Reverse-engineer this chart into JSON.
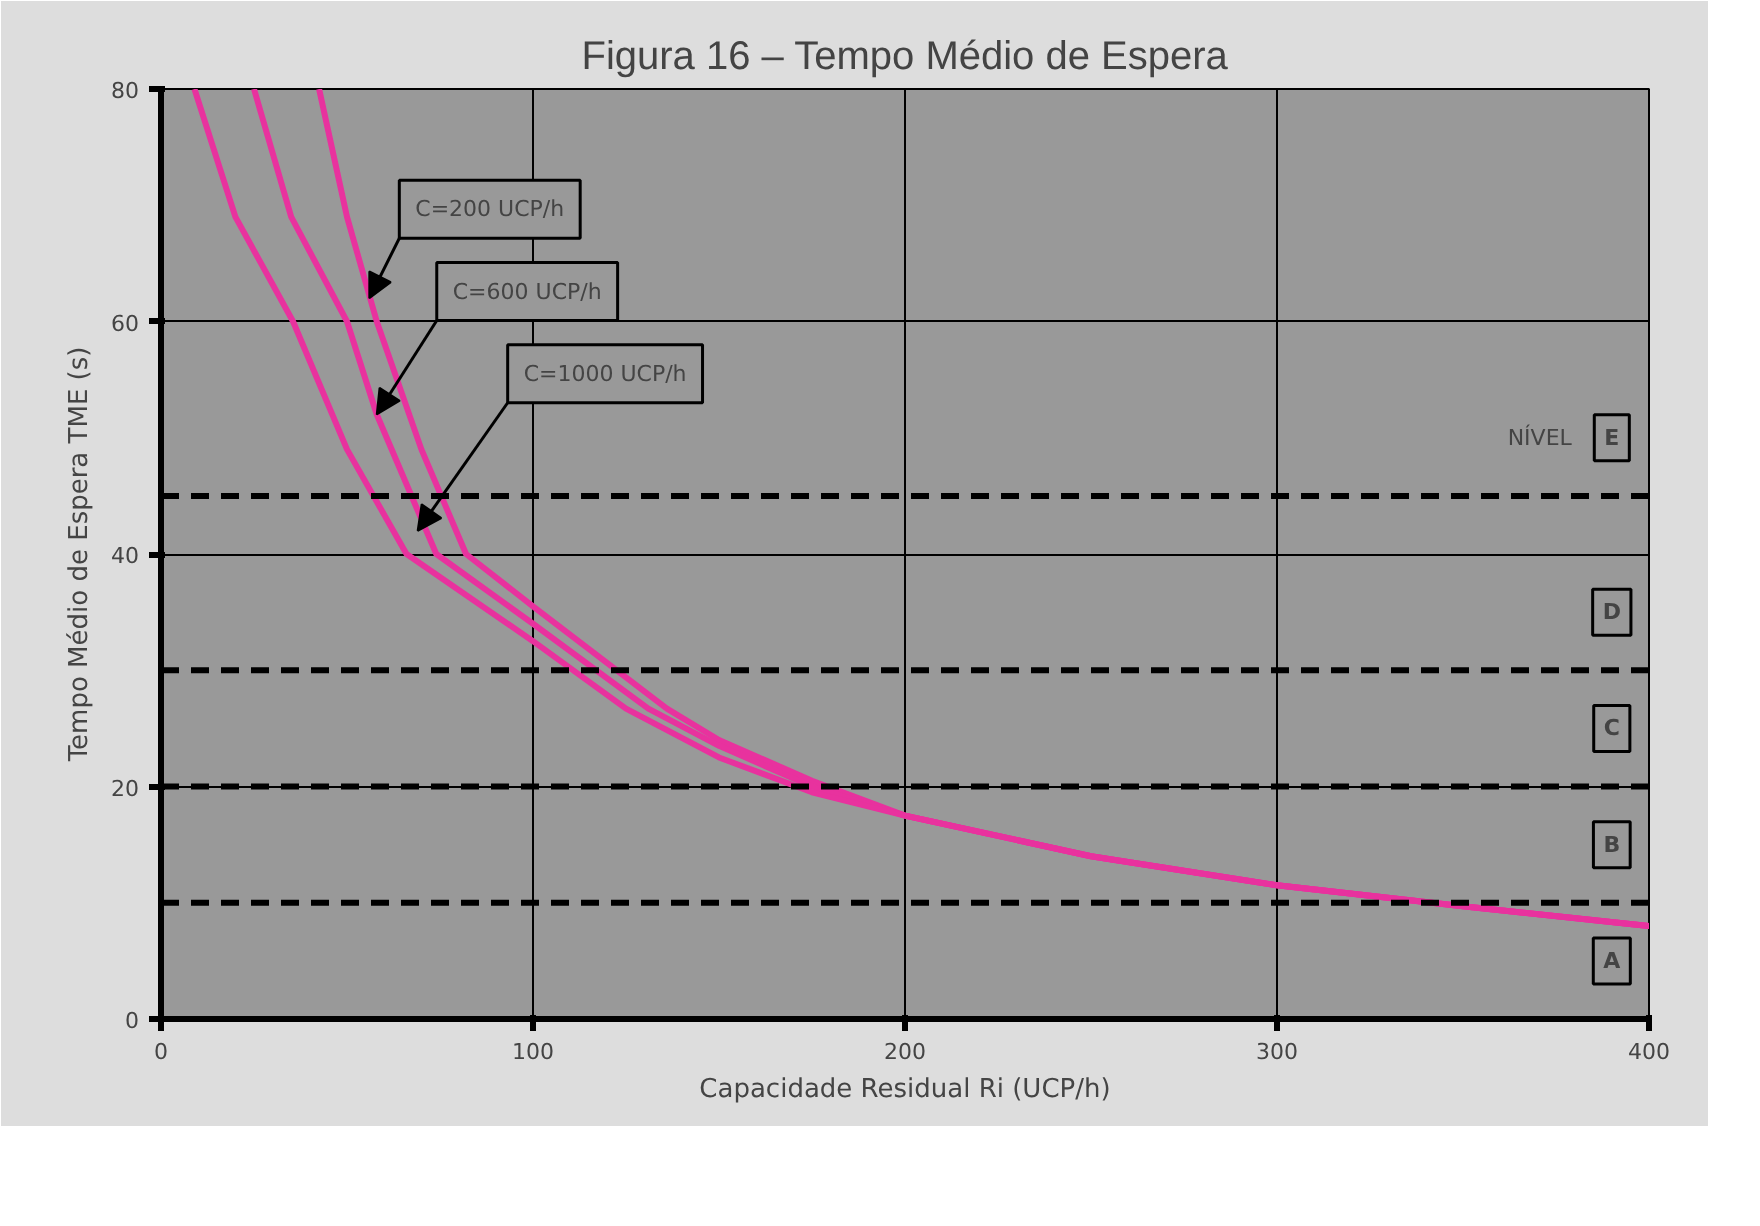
{
  "chart_data": {
    "type": "line",
    "title": "Figura 16 – Tempo Médio de Espera",
    "xlabel": "Capacidade Residual Ri (UCP/h)",
    "ylabel": "Tempo Médio de Espera TME (s)",
    "xlim": [
      0,
      400
    ],
    "ylim": [
      0,
      80
    ],
    "xticks": [
      0,
      100,
      200,
      300,
      400
    ],
    "yticks": [
      0,
      20,
      40,
      60,
      80
    ],
    "grid": true,
    "marker": "none",
    "line_style": "solid",
    "series": [
      {
        "color": "#e8329e",
        "x": [
          42.5,
          50,
          58,
          70,
          82,
          100,
          136,
          150,
          175,
          200,
          250,
          300,
          350,
          400
        ],
        "values": [
          80,
          69,
          60,
          49,
          40,
          35.5,
          26.7,
          24,
          20.5,
          17.5,
          14,
          11.5,
          9.7,
          8
        ]
      },
      {
        "color": "#e8329e",
        "x": [
          25,
          35,
          50,
          58,
          74,
          100,
          131,
          150,
          175,
          200,
          250,
          300,
          350,
          400
        ],
        "values": [
          80,
          69,
          60,
          52,
          40,
          34,
          26.7,
          23.5,
          20,
          17.5,
          14,
          11.5,
          9.7,
          8
        ]
      },
      {
        "color": "#e8329e",
        "x": [
          9,
          20,
          35.5,
          50,
          66,
          100,
          125,
          150,
          175,
          200,
          250,
          300,
          350,
          400
        ],
        "values": [
          80,
          69,
          60,
          49,
          40,
          32.5,
          26.7,
          22.5,
          19.5,
          17.5,
          14,
          11.5,
          9.7,
          8
        ]
      }
    ],
    "ref_lines": [
      {
        "axis": "y",
        "value": 10,
        "color": "#000000",
        "line_style": "dashed"
      },
      {
        "axis": "y",
        "value": 20,
        "color": "#000000",
        "line_style": "dashed"
      },
      {
        "axis": "y",
        "value": 30,
        "color": "#000000",
        "line_style": "dashed"
      },
      {
        "axis": "y",
        "value": 45,
        "color": "#000000",
        "line_style": "dashed"
      }
    ],
    "annotations": [
      {
        "text": "C=200 UCP/h",
        "x": 56,
        "y": 62
      },
      {
        "text": "C=600 UCP/h",
        "x": 58,
        "y": 52
      },
      {
        "text": "C=1000 UCP/h",
        "x": 69,
        "y": 42
      },
      {
        "text": "A",
        "x": 390,
        "y": 5
      },
      {
        "text": "B",
        "x": 390,
        "y": 15
      },
      {
        "text": "C",
        "x": 390,
        "y": 25
      },
      {
        "text": "D",
        "x": 390,
        "y": 35
      },
      {
        "text": "E",
        "x": 390,
        "y": 50
      },
      "NÍVEL"
    ]
  }
}
